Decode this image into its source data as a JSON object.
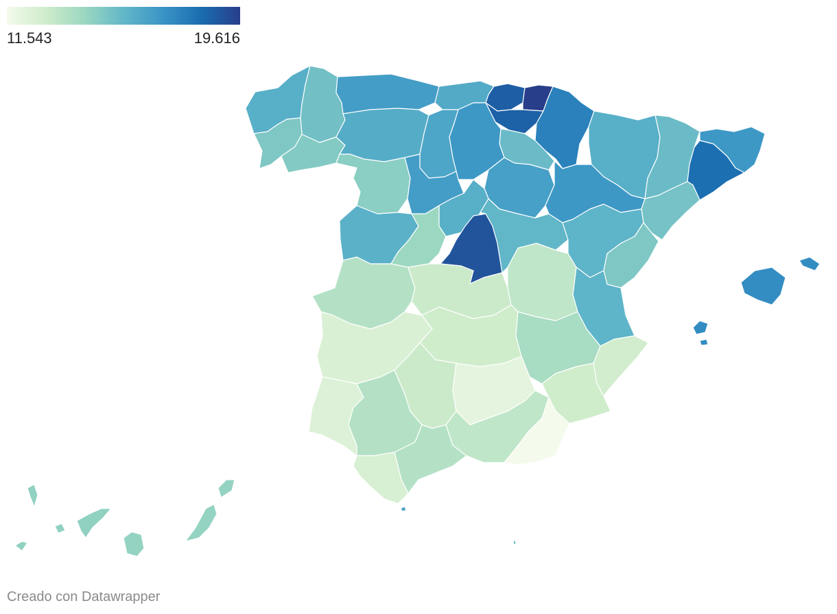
{
  "legend": {
    "min_label": "11.543",
    "max_label": "19.616",
    "min_value": 11.543,
    "max_value": 19.616,
    "stops": [
      "#f4faec",
      "#cfeccb",
      "#9bd7c1",
      "#62b7c8",
      "#3a95c6",
      "#1a6db0",
      "#283e8a"
    ]
  },
  "credit": "Creado con Datawrapper",
  "map": {
    "border_color": "#ffffff",
    "regions": [
      {
        "name": "coruna",
        "value": 15.9
      },
      {
        "name": "lugo",
        "value": 15.2
      },
      {
        "name": "pontevedra",
        "value": 14.9
      },
      {
        "name": "ourense",
        "value": 14.8
      },
      {
        "name": "asturias",
        "value": 16.6
      },
      {
        "name": "cantabria",
        "value": 16.1
      },
      {
        "name": "bizkaia",
        "value": 18.7
      },
      {
        "name": "gipuzkoa",
        "value": 19.616
      },
      {
        "name": "alava",
        "value": 18.6
      },
      {
        "name": "navarra",
        "value": 17.6
      },
      {
        "name": "la-rioja",
        "value": 15.4
      },
      {
        "name": "leon",
        "value": 16.0
      },
      {
        "name": "palencia",
        "value": 16.3
      },
      {
        "name": "burgos",
        "value": 16.8
      },
      {
        "name": "zamora",
        "value": 14.6
      },
      {
        "name": "valladolid",
        "value": 16.6
      },
      {
        "name": "soria",
        "value": 16.5
      },
      {
        "name": "salamanca",
        "value": 15.8
      },
      {
        "name": "segovia",
        "value": 15.9
      },
      {
        "name": "avila",
        "value": 14.2
      },
      {
        "name": "madrid",
        "value": 19.0
      },
      {
        "name": "guadalajara",
        "value": 15.6
      },
      {
        "name": "huesca",
        "value": 15.9
      },
      {
        "name": "zaragoza",
        "value": 16.8
      },
      {
        "name": "teruel",
        "value": 15.7
      },
      {
        "name": "lleida",
        "value": 15.4
      },
      {
        "name": "barcelona",
        "value": 18.2
      },
      {
        "name": "girona",
        "value": 16.8
      },
      {
        "name": "tarragona",
        "value": 15.1
      },
      {
        "name": "castellon",
        "value": 14.9
      },
      {
        "name": "valencia",
        "value": 15.7
      },
      {
        "name": "alicante",
        "value": 12.8
      },
      {
        "name": "caceres",
        "value": 13.6
      },
      {
        "name": "badajoz",
        "value": 12.5
      },
      {
        "name": "toledo",
        "value": 13.0
      },
      {
        "name": "cuenca",
        "value": 13.3
      },
      {
        "name": "ciudad-real",
        "value": 12.9
      },
      {
        "name": "albacete",
        "value": 13.9
      },
      {
        "name": "murcia",
        "value": 12.9
      },
      {
        "name": "huelva",
        "value": 12.4
      },
      {
        "name": "sevilla",
        "value": 13.6
      },
      {
        "name": "cordoba",
        "value": 13.0
      },
      {
        "name": "jaen",
        "value": 12.1
      },
      {
        "name": "granada",
        "value": 13.3
      },
      {
        "name": "almeria",
        "value": 11.543
      },
      {
        "name": "malaga",
        "value": 13.6
      },
      {
        "name": "cadiz",
        "value": 12.6
      },
      {
        "name": "baleares",
        "value": 17.2
      },
      {
        "name": "las-palmas",
        "value": 14.4
      },
      {
        "name": "santa-cruz-tenerife",
        "value": 14.5
      },
      {
        "name": "ceuta",
        "value": 16.5
      },
      {
        "name": "melilla",
        "value": 15.5
      }
    ]
  }
}
